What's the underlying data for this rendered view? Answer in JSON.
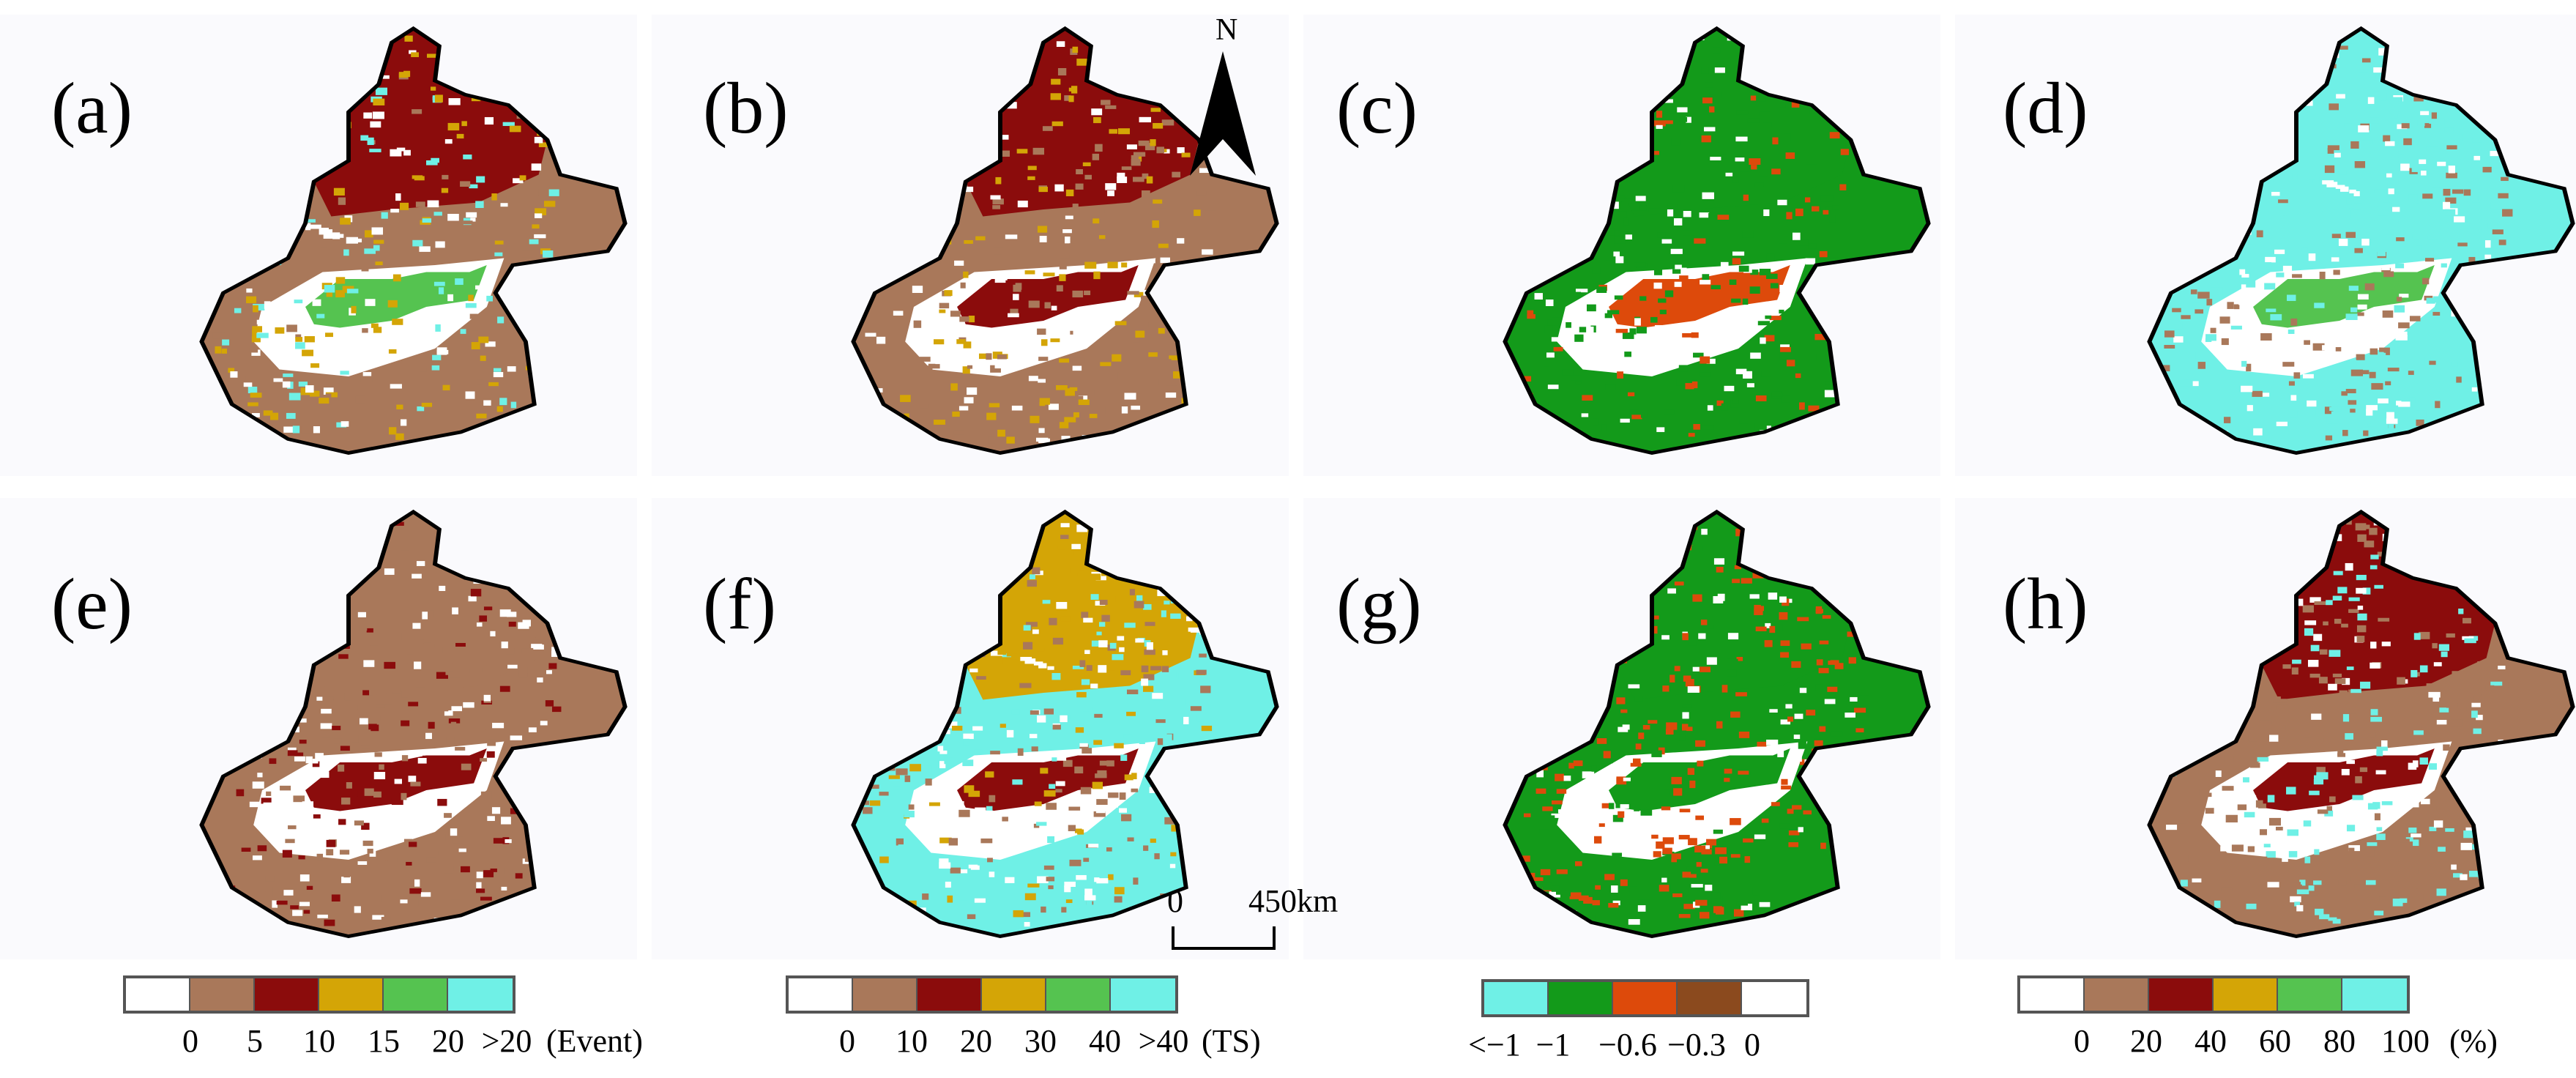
{
  "panel_labels": [
    "(a)",
    "(b)",
    "(c)",
    "(d)",
    "(e)",
    "(f)",
    "(g)",
    "(h)"
  ],
  "north_arrow": {
    "label": "N",
    "icon": "north-arrow-icon"
  },
  "scale_bar": {
    "start_label": "0",
    "end_label": "450km"
  },
  "legends": [
    {
      "name": "event-legend",
      "colors": [
        "#ffffff",
        "#a9785a",
        "#8b0c0c",
        "#d4a506",
        "#55c350",
        "#6ff0e6"
      ],
      "ticks": [
        "0",
        "5",
        "10",
        "15",
        "20",
        ">20"
      ],
      "unit": "(Event)"
    },
    {
      "name": "ts-legend",
      "colors": [
        "#ffffff",
        "#a9785a",
        "#8b0c0c",
        "#d4a506",
        "#55c350",
        "#6ff0e6"
      ],
      "ticks": [
        "0",
        "10",
        "20",
        "30",
        "40",
        ">40"
      ],
      "unit": "(TS)"
    },
    {
      "name": "correlation-legend",
      "colors": [
        "#6ff0e6",
        "#139a1a",
        "#dd4a0b",
        "#8b4a1e",
        "#ffffff"
      ],
      "ticks": [
        "<−1",
        "−1",
        "−0.6",
        "−0.3",
        "0"
      ],
      "unit": ""
    },
    {
      "name": "percent-legend",
      "colors": [
        "#ffffff",
        "#a9785a",
        "#8b0c0c",
        "#d4a506",
        "#55c350",
        "#6ff0e6"
      ],
      "ticks": [
        "0",
        "20",
        "40",
        "60",
        "80",
        "100"
      ],
      "unit": "(%)"
    }
  ],
  "map_fills": [
    {
      "bg": "#a9785a",
      "north": "#8b0c0c",
      "north2": "#d4a506",
      "basin": "#55c350",
      "basin2": "#6ff0e6"
    },
    {
      "bg": "#a9785a",
      "north": "#8b0c0c",
      "north2": "#d4a506",
      "basin": "#8b0c0c",
      "basin2": "#a9785a"
    },
    {
      "bg": "#139a1a",
      "north": "#139a1a",
      "north2": "#139a1a",
      "basin": "#dd4a0b",
      "basin2": "#dd4a0b"
    },
    {
      "bg": "#6ff0e6",
      "north": "#6ff0e6",
      "north2": "#a9785a",
      "basin": "#55c350",
      "basin2": "#6ff0e6"
    },
    {
      "bg": "#a9785a",
      "north": "#a9785a",
      "north2": "#a9785a",
      "basin": "#8b0c0c",
      "basin2": "#8b0c0c"
    },
    {
      "bg": "#6ff0e6",
      "north": "#d4a506",
      "north2": "#a9785a",
      "basin": "#8b0c0c",
      "basin2": "#d4a506"
    },
    {
      "bg": "#139a1a",
      "north": "#139a1a",
      "north2": "#dd4a0b",
      "basin": "#139a1a",
      "basin2": "#dd4a0b"
    },
    {
      "bg": "#a9785a",
      "north": "#8b0c0c",
      "north2": "#6ff0e6",
      "basin": "#8b0c0c",
      "basin2": "#a9785a"
    }
  ]
}
